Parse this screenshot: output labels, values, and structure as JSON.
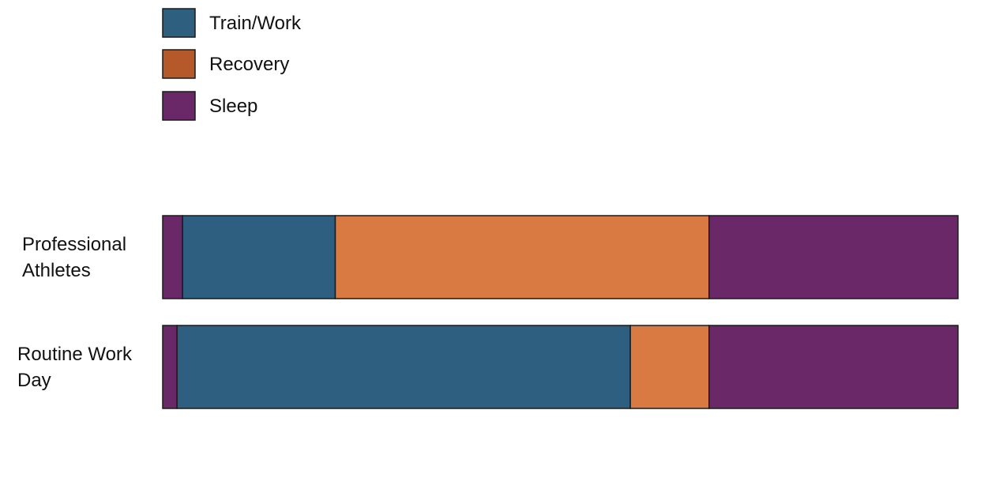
{
  "chart_data": {
    "type": "bar",
    "orientation": "horizontal",
    "stacked": true,
    "title": "",
    "xlabel": "",
    "ylabel": "",
    "grid": false,
    "legend_position": "top-left",
    "categories": [
      "Professional Athletes",
      "Routine Work Day"
    ],
    "series": [
      {
        "name": "Sleep",
        "values": [
          2.5,
          1.8
        ],
        "color": "#6B2868",
        "legend": false
      },
      {
        "name": "Train/Work",
        "values": [
          19.2,
          57.0
        ],
        "color": "#2E5F80",
        "legend": true,
        "legend_color": "#2E5F7F"
      },
      {
        "name": "Recovery",
        "values": [
          47.0,
          9.9
        ],
        "color": "#D97A42",
        "legend": true,
        "legend_color": "#B5582A"
      },
      {
        "name": "Sleep",
        "values": [
          31.3,
          31.3
        ],
        "color": "#6B2868",
        "legend": true,
        "legend_color": "#6B2868"
      }
    ],
    "xlim": [
      0,
      100
    ]
  }
}
